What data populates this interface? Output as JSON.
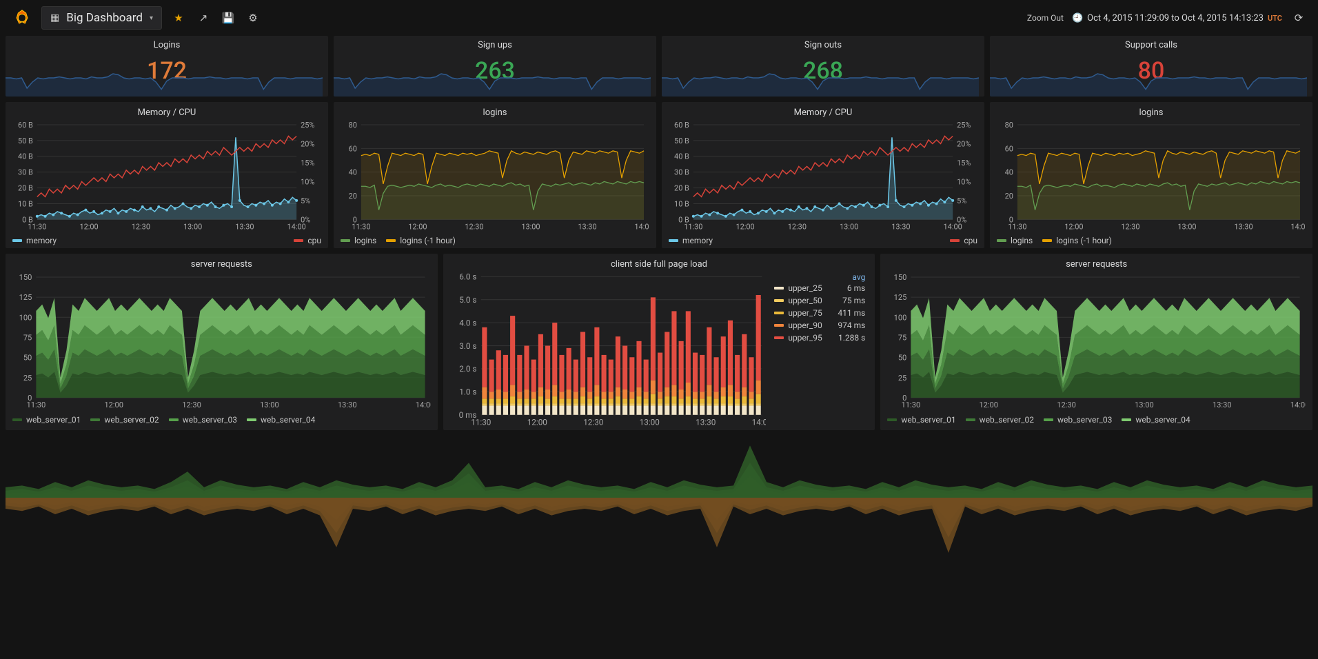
{
  "topbar": {
    "dashboard_title": "Big Dashboard",
    "zoom_out_label": "Zoom Out",
    "timerange_text": "Oct 4, 2015 11:29:09 to Oct 4, 2015 14:13:23",
    "utc_label": "UTC"
  },
  "colors": {
    "bg": "#141414",
    "panel_bg": "#1f1f20",
    "text": "#d8d9da",
    "muted": "#a6a6a6",
    "grid": "#333333",
    "spark_blue": "#2f5b8f",
    "spark_fill": "#1e3452",
    "stat_orange": "#e07b39",
    "stat_green": "#3aa655",
    "stat_red": "#d84339",
    "cyan": "#6cc8e8",
    "red": "#d84339",
    "green_line": "#629e51",
    "yellow_line": "#e5a100",
    "server_greens": [
      "#2d5a27",
      "#3f7a37",
      "#56a14a",
      "#7fcb70"
    ],
    "bar_colors": [
      "#f2e6c9",
      "#f2cc60",
      "#eab839",
      "#ef843c",
      "#e24d42"
    ],
    "wide_up": [
      "#2d5a27",
      "#3f7a37",
      "#56a14a"
    ],
    "wide_down": [
      "#6b4a1f",
      "#a76a2a",
      "#d88a35"
    ]
  },
  "stat_panels": [
    {
      "title": "Logins",
      "value": "172",
      "color": "#e07b39"
    },
    {
      "title": "Sign ups",
      "value": "263",
      "color": "#3aa655"
    },
    {
      "title": "Sign outs",
      "value": "268",
      "color": "#3aa655"
    },
    {
      "title": "Support calls",
      "value": "80",
      "color": "#d84339"
    }
  ],
  "sparkline": {
    "values": [
      18,
      18,
      17,
      18,
      8,
      14,
      18,
      17,
      18,
      18,
      19,
      18,
      17,
      18,
      18,
      17,
      19,
      18,
      18,
      19,
      22,
      21,
      18,
      17,
      18,
      18,
      17,
      18,
      14,
      7,
      15,
      18,
      18,
      18,
      17,
      18,
      18,
      18,
      19,
      18,
      18,
      17,
      18,
      18,
      18,
      17,
      18,
      18,
      7,
      14,
      18,
      18,
      18,
      17,
      18,
      18,
      18,
      18,
      17,
      18
    ]
  },
  "x_ticks": [
    "11:30",
    "12:00",
    "12:30",
    "13:00",
    "13:30",
    "14:00"
  ],
  "memory_cpu": {
    "title": "Memory / CPU",
    "y_left_ticks": [
      "0 B",
      "10 B",
      "20 B",
      "30 B",
      "40 B",
      "50 B",
      "60 B"
    ],
    "y_right_ticks": [
      "0%",
      "5%",
      "10%",
      "15%",
      "20%",
      "25%"
    ],
    "memory": [
      2,
      3,
      2,
      4,
      3,
      5,
      4,
      3,
      2,
      4,
      3,
      5,
      6,
      4,
      5,
      3,
      4,
      6,
      5,
      7,
      4,
      6,
      5,
      7,
      6,
      5,
      8,
      6,
      7,
      5,
      8,
      7,
      6,
      9,
      7,
      8,
      10,
      8,
      7,
      9,
      8,
      10,
      9,
      11,
      8,
      7,
      9,
      10,
      8,
      52,
      12,
      9,
      8,
      10,
      9,
      11,
      10,
      12,
      9,
      11,
      10,
      13,
      11,
      14,
      12
    ],
    "cpu": [
      6,
      7,
      6,
      8,
      7,
      8,
      7,
      9,
      8,
      9,
      8,
      10,
      9,
      10,
      11,
      10,
      11,
      10,
      12,
      11,
      12,
      11,
      13,
      12,
      13,
      12,
      14,
      13,
      14,
      13,
      15,
      14,
      15,
      14,
      16,
      15,
      16,
      15,
      17,
      16,
      17,
      16,
      18,
      17,
      18,
      17,
      19,
      18,
      17,
      18,
      19,
      18,
      19,
      18,
      20,
      19,
      20,
      19,
      21,
      20,
      21,
      20,
      22,
      21,
      22
    ],
    "legend": [
      {
        "label": "memory",
        "color": "#6cc8e8"
      },
      {
        "label": "cpu",
        "color": "#d84339"
      }
    ]
  },
  "logins_chart": {
    "title": "logins",
    "y_ticks": [
      "0",
      "20",
      "40",
      "60",
      "80"
    ],
    "logins": [
      28,
      28,
      27,
      29,
      8,
      22,
      28,
      29,
      28,
      27,
      28,
      29,
      28,
      30,
      29,
      28,
      27,
      29,
      30,
      28,
      29,
      28,
      27,
      29,
      30,
      29,
      28,
      30,
      29,
      28,
      30,
      29,
      28,
      30,
      31,
      29,
      30,
      28,
      29,
      8,
      24,
      30,
      29,
      28,
      30,
      29,
      30,
      31,
      29,
      30,
      31,
      30,
      29,
      31,
      30,
      32,
      31,
      30,
      32,
      31,
      30,
      32,
      31,
      32,
      31
    ],
    "logins_1h": [
      54,
      55,
      54,
      56,
      55,
      30,
      45,
      56,
      55,
      54,
      56,
      55,
      54,
      56,
      55,
      30,
      45,
      56,
      55,
      54,
      56,
      55,
      54,
      56,
      55,
      56,
      54,
      55,
      56,
      58,
      57,
      56,
      35,
      50,
      58,
      56,
      55,
      57,
      56,
      55,
      57,
      56,
      55,
      57,
      58,
      56,
      35,
      50,
      57,
      56,
      55,
      58,
      57,
      56,
      58,
      57,
      56,
      58,
      57,
      35,
      50,
      58,
      57,
      56,
      58
    ],
    "legend": [
      {
        "label": "logins",
        "color": "#629e51"
      },
      {
        "label": "logins (-1 hour)",
        "color": "#e5a100"
      }
    ]
  },
  "server_requests": {
    "title": "server requests",
    "y_ticks": [
      "0",
      "25",
      "50",
      "75",
      "100",
      "125",
      "150"
    ],
    "series": [
      [
        28,
        30,
        25,
        32,
        6,
        15,
        30,
        28,
        32,
        30,
        28,
        30,
        32,
        28,
        30,
        28,
        30,
        32,
        30,
        28,
        30,
        28,
        32,
        30,
        28,
        6,
        15,
        28,
        30,
        32,
        30,
        28,
        30,
        28,
        30,
        32,
        28,
        30,
        28,
        30,
        32,
        30,
        28,
        30,
        28,
        32,
        30,
        28,
        30,
        32,
        30,
        28,
        30,
        32,
        30,
        28,
        30,
        28,
        30,
        32,
        28,
        30,
        32,
        30,
        28
      ],
      [
        24,
        26,
        22,
        28,
        5,
        12,
        26,
        24,
        28,
        26,
        24,
        26,
        28,
        24,
        26,
        24,
        26,
        28,
        26,
        24,
        26,
        24,
        28,
        26,
        24,
        5,
        12,
        24,
        26,
        28,
        26,
        24,
        26,
        24,
        26,
        28,
        24,
        26,
        24,
        26,
        28,
        26,
        24,
        26,
        24,
        28,
        26,
        24,
        26,
        28,
        26,
        24,
        26,
        28,
        26,
        24,
        26,
        24,
        26,
        28,
        24,
        26,
        28,
        26,
        24
      ],
      [
        26,
        28,
        24,
        30,
        6,
        14,
        28,
        26,
        30,
        28,
        26,
        28,
        30,
        26,
        28,
        26,
        28,
        30,
        28,
        26,
        28,
        26,
        30,
        28,
        26,
        6,
        14,
        26,
        28,
        30,
        28,
        26,
        28,
        26,
        28,
        30,
        26,
        28,
        26,
        28,
        30,
        28,
        26,
        28,
        26,
        30,
        28,
        26,
        28,
        30,
        28,
        26,
        28,
        30,
        28,
        26,
        28,
        26,
        28,
        30,
        26,
        28,
        30,
        28,
        26
      ],
      [
        30,
        32,
        28,
        34,
        8,
        18,
        32,
        30,
        34,
        32,
        30,
        32,
        34,
        30,
        32,
        30,
        32,
        34,
        32,
        30,
        32,
        30,
        34,
        32,
        30,
        8,
        18,
        30,
        32,
        34,
        32,
        30,
        32,
        30,
        32,
        34,
        30,
        32,
        30,
        32,
        34,
        32,
        30,
        32,
        30,
        34,
        32,
        30,
        32,
        34,
        32,
        30,
        32,
        34,
        32,
        30,
        32,
        30,
        32,
        34,
        30,
        32,
        34,
        32,
        30
      ]
    ],
    "legend": [
      {
        "label": "web_server_01",
        "color": "#2d5a27"
      },
      {
        "label": "web_server_02",
        "color": "#3f7a37"
      },
      {
        "label": "web_server_03",
        "color": "#56a14a"
      },
      {
        "label": "web_server_04",
        "color": "#7fcb70"
      }
    ]
  },
  "page_load": {
    "title": "client side full page load",
    "y_ticks": [
      "0 ms",
      "1.0 s",
      "2.0 s",
      "3.0 s",
      "4.0 s",
      "5.0 s",
      "6.0 s"
    ],
    "avg_header": "avg",
    "legend": [
      {
        "label": "upper_25",
        "color": "#f2e6c9",
        "value": "6 ms"
      },
      {
        "label": "upper_50",
        "color": "#f2cc60",
        "value": "75 ms"
      },
      {
        "label": "upper_75",
        "color": "#eab839",
        "value": "411 ms"
      },
      {
        "label": "upper_90",
        "color": "#ef843c",
        "value": "974 ms"
      },
      {
        "label": "upper_95",
        "color": "#e24d42",
        "value": "1.288 s"
      }
    ],
    "bars": [
      [
        0.4,
        0.5,
        0.7,
        1.2,
        3.8
      ],
      [
        0.4,
        0.5,
        0.7,
        1.0,
        2.4
      ],
      [
        0.4,
        0.5,
        0.7,
        1.1,
        2.8
      ],
      [
        0.4,
        0.5,
        0.7,
        1.0,
        2.6
      ],
      [
        0.4,
        0.5,
        0.8,
        1.3,
        4.3
      ],
      [
        0.4,
        0.5,
        0.7,
        1.0,
        2.6
      ],
      [
        0.4,
        0.5,
        0.7,
        1.1,
        3.0
      ],
      [
        0.4,
        0.5,
        0.7,
        1.0,
        2.4
      ],
      [
        0.4,
        0.5,
        0.8,
        1.2,
        3.5
      ],
      [
        0.4,
        0.5,
        0.7,
        1.1,
        3.0
      ],
      [
        0.4,
        0.5,
        0.8,
        1.3,
        4.0
      ],
      [
        0.4,
        0.5,
        0.7,
        1.0,
        2.6
      ],
      [
        0.4,
        0.5,
        0.7,
        1.1,
        2.9
      ],
      [
        0.4,
        0.5,
        0.7,
        1.0,
        2.4
      ],
      [
        0.4,
        0.5,
        0.8,
        1.2,
        3.6
      ],
      [
        0.4,
        0.5,
        0.7,
        1.0,
        2.5
      ],
      [
        0.4,
        0.5,
        0.8,
        1.3,
        3.8
      ],
      [
        0.4,
        0.5,
        0.7,
        1.0,
        2.6
      ],
      [
        0.4,
        0.5,
        0.7,
        1.0,
        2.4
      ],
      [
        0.4,
        0.5,
        0.8,
        1.2,
        3.4
      ],
      [
        0.4,
        0.5,
        0.7,
        1.1,
        3.0
      ],
      [
        0.4,
        0.5,
        0.7,
        1.0,
        2.5
      ],
      [
        0.4,
        0.5,
        0.8,
        1.2,
        3.2
      ],
      [
        0.4,
        0.5,
        0.7,
        1.0,
        2.4
      ],
      [
        0.4,
        0.5,
        0.9,
        1.5,
        5.1
      ],
      [
        0.4,
        0.5,
        0.7,
        1.0,
        2.7
      ],
      [
        0.4,
        0.5,
        0.8,
        1.2,
        3.6
      ],
      [
        0.4,
        0.5,
        0.8,
        1.3,
        4.5
      ],
      [
        0.4,
        0.5,
        0.7,
        1.1,
        3.2
      ],
      [
        0.4,
        0.5,
        0.8,
        1.4,
        4.5
      ],
      [
        0.4,
        0.5,
        0.7,
        1.0,
        2.7
      ],
      [
        0.4,
        0.5,
        0.7,
        1.0,
        2.6
      ],
      [
        0.4,
        0.5,
        0.8,
        1.3,
        3.8
      ],
      [
        0.4,
        0.5,
        0.7,
        1.0,
        2.5
      ],
      [
        0.4,
        0.5,
        0.8,
        1.2,
        3.4
      ],
      [
        0.4,
        0.5,
        0.8,
        1.3,
        4.1
      ],
      [
        0.4,
        0.5,
        0.7,
        1.0,
        2.6
      ],
      [
        0.4,
        0.5,
        0.8,
        1.2,
        3.5
      ],
      [
        0.4,
        0.5,
        0.7,
        1.0,
        2.5
      ],
      [
        0.4,
        0.5,
        0.9,
        1.5,
        5.2
      ]
    ]
  },
  "wide": {
    "up": [
      [
        12,
        14,
        10,
        18,
        12,
        20,
        15,
        12,
        14,
        10,
        18,
        30,
        12,
        20,
        15,
        12,
        14,
        10,
        18,
        12,
        20,
        15,
        12,
        14,
        10,
        18,
        12,
        20,
        40,
        12,
        14,
        10,
        18,
        12,
        20,
        15,
        12,
        14,
        10,
        18,
        12,
        20,
        15,
        12,
        14,
        60,
        18,
        12,
        20,
        15,
        12,
        14,
        10,
        18,
        12,
        20,
        15,
        12,
        14,
        10,
        18,
        12,
        20,
        15,
        12,
        14,
        10,
        18,
        12,
        20,
        15,
        12,
        14,
        10,
        18,
        12,
        20,
        15,
        12,
        14
      ],
      [
        8,
        10,
        7,
        12,
        8,
        14,
        10,
        8,
        10,
        7,
        12,
        20,
        8,
        14,
        10,
        8,
        10,
        7,
        12,
        8,
        14,
        10,
        8,
        10,
        7,
        12,
        8,
        14,
        28,
        8,
        10,
        7,
        12,
        8,
        14,
        10,
        8,
        10,
        7,
        12,
        8,
        14,
        10,
        8,
        10,
        40,
        12,
        8,
        14,
        10,
        8,
        10,
        7,
        12,
        8,
        14,
        10,
        8,
        10,
        7,
        12,
        8,
        14,
        10,
        8,
        10,
        7,
        12,
        8,
        14,
        10,
        8,
        10,
        7,
        12,
        8,
        14,
        10,
        8,
        10
      ],
      [
        5,
        6,
        4,
        8,
        5,
        9,
        7,
        5,
        6,
        4,
        8,
        13,
        5,
        9,
        7,
        5,
        6,
        4,
        8,
        5,
        9,
        7,
        5,
        6,
        4,
        8,
        5,
        9,
        18,
        5,
        6,
        4,
        8,
        5,
        9,
        7,
        5,
        6,
        4,
        8,
        5,
        9,
        7,
        5,
        6,
        25,
        8,
        5,
        9,
        7,
        5,
        6,
        4,
        8,
        5,
        9,
        7,
        5,
        6,
        4,
        8,
        5,
        9,
        7,
        5,
        6,
        4,
        8,
        5,
        9,
        7,
        5,
        6,
        4,
        8,
        5,
        9,
        7,
        5,
        6
      ]
    ],
    "down": [
      [
        10,
        12,
        8,
        15,
        10,
        16,
        12,
        10,
        12,
        8,
        15,
        10,
        16,
        12,
        10,
        12,
        8,
        15,
        10,
        16,
        45,
        10,
        12,
        8,
        15,
        10,
        16,
        12,
        10,
        12,
        8,
        15,
        10,
        16,
        12,
        10,
        12,
        8,
        15,
        10,
        16,
        12,
        10,
        45,
        8,
        15,
        10,
        16,
        12,
        10,
        12,
        8,
        15,
        10,
        16,
        12,
        10,
        50,
        8,
        15,
        10,
        16,
        12,
        10,
        12,
        8,
        15,
        10,
        16,
        12,
        10,
        12,
        8,
        15,
        10,
        16,
        12,
        10,
        12,
        8
      ],
      [
        7,
        9,
        6,
        11,
        7,
        12,
        9,
        7,
        9,
        6,
        11,
        7,
        12,
        9,
        7,
        9,
        6,
        11,
        7,
        12,
        32,
        7,
        9,
        6,
        11,
        7,
        12,
        9,
        7,
        9,
        6,
        11,
        7,
        12,
        9,
        7,
        9,
        6,
        11,
        7,
        12,
        9,
        7,
        32,
        6,
        11,
        7,
        12,
        9,
        7,
        9,
        6,
        11,
        7,
        12,
        9,
        7,
        36,
        6,
        11,
        7,
        12,
        9,
        7,
        9,
        6,
        11,
        7,
        12,
        9,
        7,
        9,
        6,
        11,
        7,
        12,
        9,
        7,
        9,
        6
      ],
      [
        4,
        6,
        3,
        7,
        4,
        8,
        6,
        4,
        6,
        3,
        7,
        4,
        8,
        6,
        4,
        6,
        3,
        7,
        4,
        8,
        20,
        4,
        6,
        3,
        7,
        4,
        8,
        6,
        4,
        6,
        3,
        7,
        4,
        8,
        6,
        4,
        6,
        3,
        7,
        4,
        8,
        6,
        4,
        20,
        3,
        7,
        4,
        8,
        6,
        4,
        6,
        3,
        7,
        4,
        8,
        6,
        4,
        22,
        3,
        7,
        4,
        8,
        6,
        4,
        6,
        3,
        7,
        4,
        8,
        6,
        4,
        6,
        3,
        7,
        4,
        8,
        6,
        4,
        6,
        3
      ]
    ]
  }
}
